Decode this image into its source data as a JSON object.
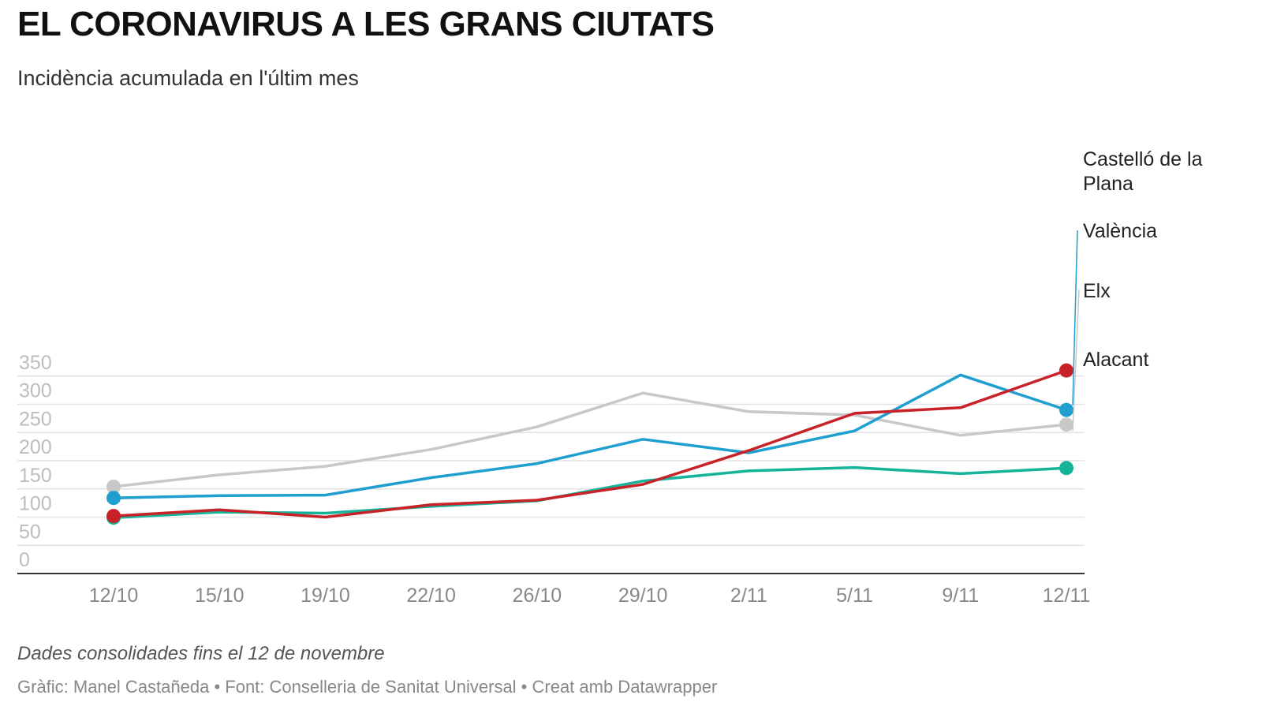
{
  "header": {
    "title": "EL CORONAVIRUS A LES GRANS CIUTATS",
    "subtitle": "Incidència acumulada en l'últim mes"
  },
  "footer": {
    "notes": "Dades consolidades fins el 12 de novembre",
    "byline": "Gràfic: Manel Castañeda • Font: Conselleria de Sanitat Universal • Creat amb Datawrapper"
  },
  "colors": {
    "castello": "#c82127",
    "valencia": "#1f9fd0",
    "elx": "#c8c8c8",
    "alacant": "#15b39a",
    "grid": "#e2e2e2",
    "axis": "#333333",
    "tick_text": "#888888",
    "y_tick_text": "#bdbdbd"
  },
  "chart_data": {
    "type": "line",
    "title": "EL CORONAVIRUS A LES GRANS CIUTATS",
    "subtitle": "Incidència acumulada en l'últim mes",
    "xlabel": "",
    "ylabel": "",
    "categories": [
      "12/10",
      "15/10",
      "19/10",
      "22/10",
      "26/10",
      "29/10",
      "2/11",
      "5/11",
      "9/11",
      "12/11"
    ],
    "ylim": [
      0,
      350
    ],
    "yticks": [
      "0",
      "50",
      "100",
      "150",
      "200",
      "250",
      "300",
      "350"
    ],
    "grid": "horizontal",
    "legend": "direct labels at right",
    "series": [
      {
        "name": "Elx",
        "color": "#c8c8c8",
        "values": [
          154,
          175,
          190,
          220,
          260,
          320,
          287,
          281,
          245,
          264
        ]
      },
      {
        "name": "València",
        "color": "#1f9fd0",
        "values": [
          134,
          138,
          139,
          170,
          195,
          238,
          214,
          253,
          352,
          290
        ]
      },
      {
        "name": "Alacant",
        "color": "#15b39a",
        "values": [
          99,
          109,
          107,
          119,
          129,
          164,
          182,
          188,
          177,
          187
        ]
      },
      {
        "name": "Castelló de la Plana",
        "label_lines": [
          "Castelló de la",
          "Plana"
        ],
        "color": "#c82127",
        "values": [
          102,
          113,
          100,
          122,
          130,
          158,
          218,
          284,
          294,
          360
        ]
      }
    ]
  }
}
